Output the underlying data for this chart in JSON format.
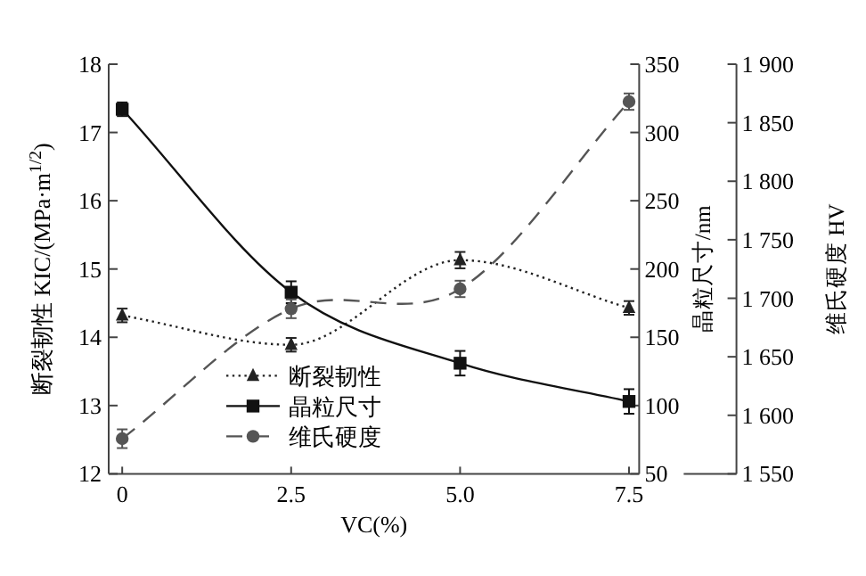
{
  "chart_data": {
    "type": "line",
    "xlabel": "VC(%)",
    "ylabel": "断裂韧性 KIC/(MPa·m$^{1/2}$)",
    "y2label": "晶粒尺寸/nm",
    "y3label": "维氏硬度 HV",
    "x": [
      0,
      2.5,
      5,
      7.5
    ],
    "xlim": [
      -0.2,
      7.65
    ],
    "xticks": [
      0,
      2.5,
      {
        "value": 5,
        "label": "5.0"
      },
      7.5
    ],
    "ylim": [
      12,
      18
    ],
    "yticks": [
      12,
      13,
      14,
      15,
      16,
      17,
      18
    ],
    "y2lim": [
      50,
      350
    ],
    "y2ticks": [
      50,
      100,
      150,
      200,
      250,
      300,
      350
    ],
    "y3lim": [
      1550,
      1900
    ],
    "y3ticks": [
      {
        "value": 1550,
        "label": "1 550"
      },
      {
        "value": 1600,
        "label": "1 600"
      },
      {
        "value": 1650,
        "label": "1 650"
      },
      {
        "value": 1700,
        "label": "1 700"
      },
      {
        "value": 1750,
        "label": "1 750"
      },
      {
        "value": 1800,
        "label": "1 800"
      },
      {
        "value": 1850,
        "label": "1 850"
      },
      {
        "value": 1900,
        "label": "1 900"
      }
    ],
    "legend": "bottom left",
    "series": [
      {
        "name": "断裂韧性",
        "color": "#222222",
        "values": [
          14.32,
          13.89,
          15.13,
          14.43
        ],
        "errors": [
          0.1,
          0.1,
          0.12,
          0.1
        ],
        "marker": "triangle",
        "line_style": "dotted"
      },
      {
        "name": "晶粒尺寸",
        "color": "#111111",
        "values": [
          317,
          183,
          131,
          103
        ],
        "errors": [
          5,
          8,
          9,
          9
        ],
        "marker": "square",
        "line_style": "solid",
        "axis": "y2"
      },
      {
        "name": "维氏硬度",
        "color": "#555555",
        "values": [
          1580,
          1691,
          1708,
          1868
        ],
        "errors": [
          8,
          8,
          7,
          7
        ],
        "marker": "circle",
        "line_style": "dashed",
        "axis": "y3"
      }
    ]
  }
}
